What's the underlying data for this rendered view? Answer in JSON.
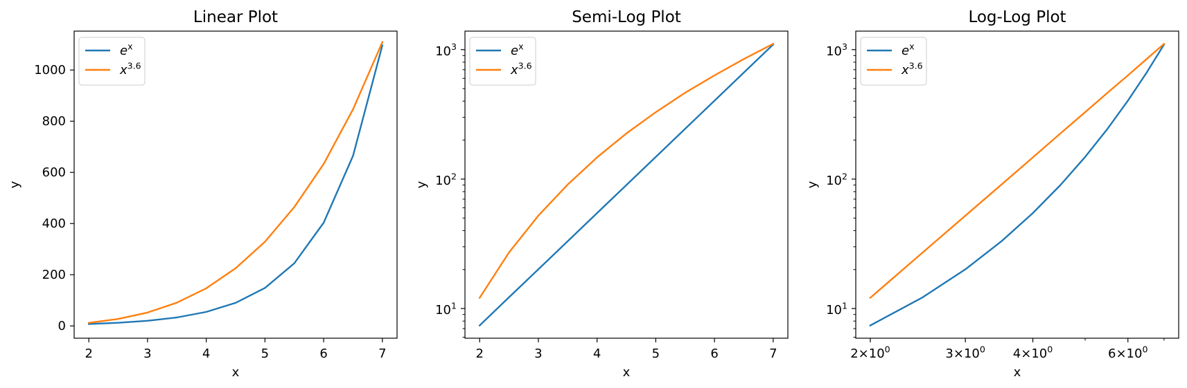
{
  "chart_data": [
    {
      "type": "line",
      "title": "Linear Plot",
      "xlabel": "x",
      "ylabel": "y",
      "xscale": "linear",
      "yscale": "linear",
      "xlim": [
        1.75,
        7.25
      ],
      "ylim": [
        -48,
        1152
      ],
      "xticks": [
        2,
        3,
        4,
        5,
        6,
        7
      ],
      "xtick_labels": [
        "2",
        "3",
        "4",
        "5",
        "6",
        "7"
      ],
      "yticks": [
        0,
        200,
        400,
        600,
        800,
        1000
      ],
      "ytick_labels": [
        "0",
        "200",
        "400",
        "600",
        "800",
        "1000"
      ],
      "grid": false,
      "legend": "upper left",
      "series": [
        {
          "name_base": "e",
          "name_sup": "x",
          "color": "#1f77b4",
          "x": [
            2,
            2.5,
            3,
            3.5,
            4,
            4.5,
            5,
            5.5,
            6,
            6.5,
            7
          ],
          "y": [
            7.4,
            12.2,
            20.1,
            33.1,
            54.6,
            90.0,
            148.4,
            244.7,
            403.4,
            665.1,
            1096.6
          ]
        },
        {
          "name_base": "x",
          "name_sup": "3.6",
          "color": "#ff7f0e",
          "x": [
            2,
            2.5,
            3,
            3.5,
            4,
            4.5,
            5,
            5.5,
            6,
            6.5,
            7
          ],
          "y": [
            12.1,
            27.1,
            52.2,
            90.8,
            147.0,
            225.2,
            328.9,
            464.5,
            632.8,
            846.5,
            1109.0
          ]
        }
      ]
    },
    {
      "type": "line",
      "title": "Semi-Log Plot",
      "xlabel": "x",
      "ylabel": "y",
      "xscale": "linear",
      "yscale": "log",
      "xlim": [
        1.75,
        7.25
      ],
      "ylim": [
        5.9,
        1390
      ],
      "xticks": [
        2,
        3,
        4,
        5,
        6,
        7
      ],
      "xtick_labels": [
        "2",
        "3",
        "4",
        "5",
        "6",
        "7"
      ],
      "yticks": [
        10,
        100,
        1000
      ],
      "ytick_labels": [
        {
          "base": "10",
          "exp": "1"
        },
        {
          "base": "10",
          "exp": "2"
        },
        {
          "base": "10",
          "exp": "3"
        }
      ],
      "grid": false,
      "legend": "upper left",
      "series": [
        {
          "name_base": "e",
          "name_sup": "x",
          "color": "#1f77b4",
          "x": [
            2,
            2.5,
            3,
            3.5,
            4,
            4.5,
            5,
            5.5,
            6,
            6.5,
            7
          ],
          "y": [
            7.4,
            12.2,
            20.1,
            33.1,
            54.6,
            90.0,
            148.4,
            244.7,
            403.4,
            665.1,
            1096.6
          ]
        },
        {
          "name_base": "x",
          "name_sup": "3.6",
          "color": "#ff7f0e",
          "x": [
            2,
            2.5,
            3,
            3.5,
            4,
            4.5,
            5,
            5.5,
            6,
            6.5,
            7
          ],
          "y": [
            12.1,
            27.1,
            52.2,
            90.8,
            147.0,
            225.2,
            328.9,
            464.5,
            632.8,
            846.5,
            1109.0
          ]
        }
      ]
    },
    {
      "type": "line",
      "title": "Log-Log Plot",
      "xlabel": "x",
      "ylabel": "y",
      "xscale": "log",
      "yscale": "log",
      "xlim": [
        1.88,
        7.45
      ],
      "ylim": [
        5.9,
        1390
      ],
      "xticks": [
        2,
        3,
        4,
        6
      ],
      "xtick_labels": [
        {
          "base": "2×10",
          "exp": "0"
        },
        {
          "base": "3×10",
          "exp": "0"
        },
        {
          "base": "4×10",
          "exp": "0"
        },
        {
          "base": "6×10",
          "exp": "0"
        }
      ],
      "yticks": [
        10,
        100,
        1000
      ],
      "ytick_labels": [
        {
          "base": "10",
          "exp": "1"
        },
        {
          "base": "10",
          "exp": "2"
        },
        {
          "base": "10",
          "exp": "3"
        }
      ],
      "grid": false,
      "legend": "upper left",
      "series": [
        {
          "name_base": "e",
          "name_sup": "x",
          "color": "#1f77b4",
          "x": [
            2,
            2.5,
            3,
            3.5,
            4,
            4.5,
            5,
            5.5,
            6,
            6.5,
            7
          ],
          "y": [
            7.4,
            12.2,
            20.1,
            33.1,
            54.6,
            90.0,
            148.4,
            244.7,
            403.4,
            665.1,
            1096.6
          ]
        },
        {
          "name_base": "x",
          "name_sup": "3.6",
          "color": "#ff7f0e",
          "x": [
            2,
            2.5,
            3,
            3.5,
            4,
            4.5,
            5,
            5.5,
            6,
            6.5,
            7
          ],
          "y": [
            12.1,
            27.1,
            52.2,
            90.8,
            147.0,
            225.2,
            328.9,
            464.5,
            632.8,
            846.5,
            1109.0
          ]
        }
      ]
    }
  ]
}
